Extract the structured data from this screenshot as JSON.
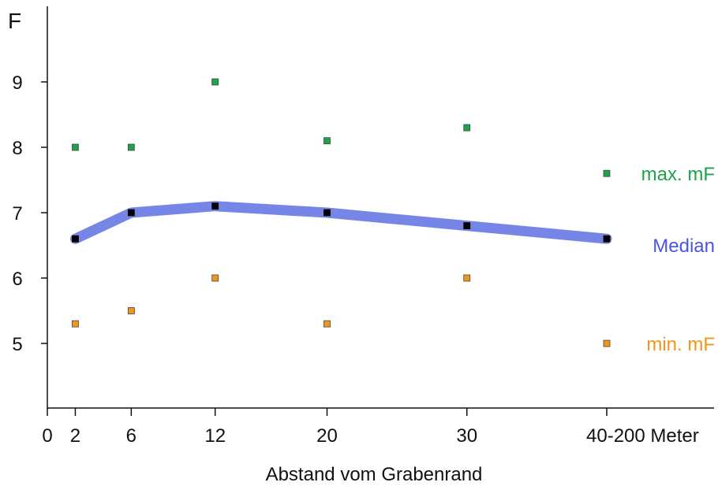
{
  "chart_data": {
    "type": "line",
    "ylabel": "F",
    "xlabel": "Abstand vom Grabenrand",
    "x_ticks": [
      {
        "label": "0",
        "pos": 0
      },
      {
        "label": "2",
        "pos": 2
      },
      {
        "label": "6",
        "pos": 6
      },
      {
        "label": "12",
        "pos": 12
      },
      {
        "label": "20",
        "pos": 20
      },
      {
        "label": "30",
        "pos": 30
      },
      {
        "label": "40-200 Meter",
        "pos": 40
      }
    ],
    "y_ticks": [
      5,
      6,
      7,
      8,
      9
    ],
    "ylim": [
      4,
      10
    ],
    "xlim": [
      0,
      47
    ],
    "categories": [
      "2",
      "6",
      "12",
      "20",
      "30",
      "40-200"
    ],
    "x": [
      2,
      6,
      12,
      20,
      30,
      40
    ],
    "series": [
      {
        "name": "max. mF",
        "values": [
          8.0,
          8.0,
          9.0,
          8.1,
          8.3,
          7.6
        ],
        "color": "#1fa34a",
        "style": "markers"
      },
      {
        "name": "Median",
        "values": [
          6.6,
          7.0,
          7.1,
          7.0,
          6.8,
          6.6
        ],
        "color": "#6f7fe6",
        "marker_color": "#000000",
        "style": "thick-line-with-markers"
      },
      {
        "name": "min. mF",
        "values": [
          5.3,
          5.5,
          6.0,
          5.3,
          6.0,
          5.0
        ],
        "color": "#f2951b",
        "style": "markers"
      }
    ],
    "legend_placement": "right, next to last point of each series",
    "grid": false
  }
}
